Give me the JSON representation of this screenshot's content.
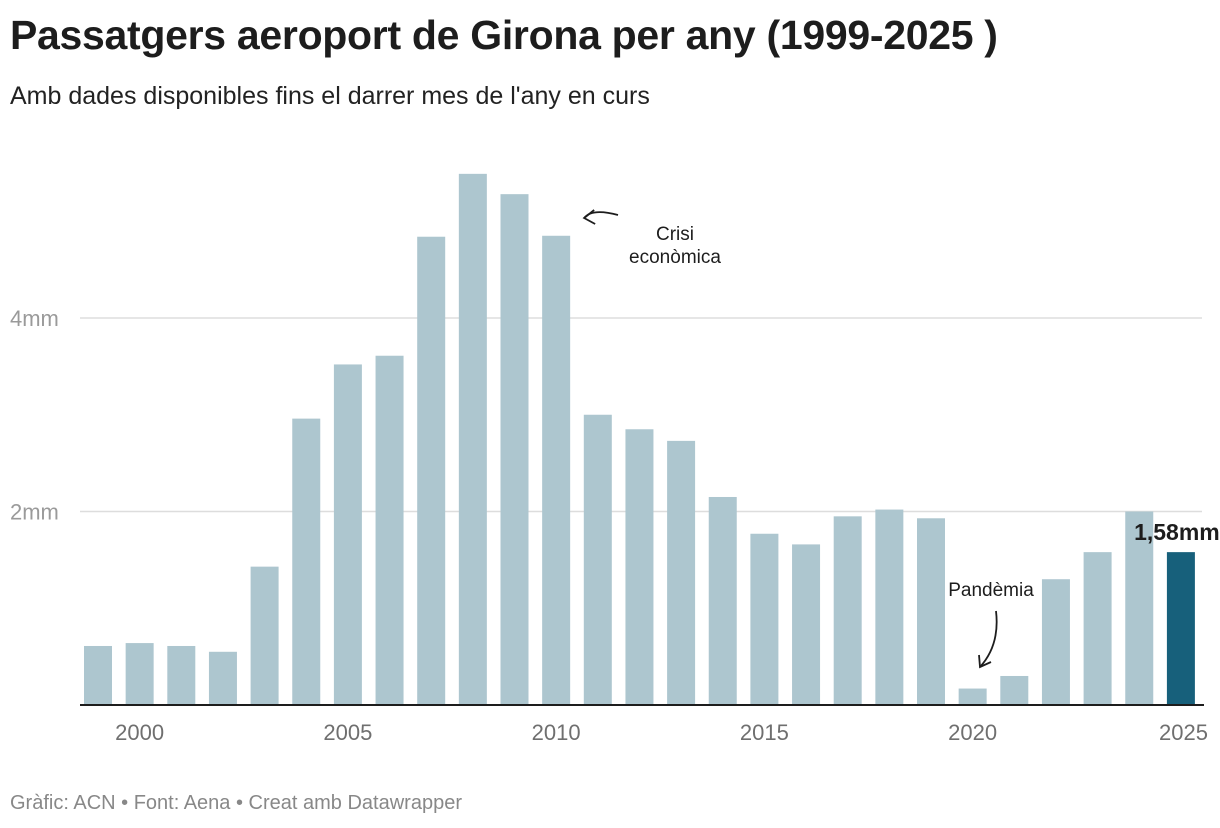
{
  "header": {
    "title": "Passatgers aeroport de Girona per any (1999-2025 )",
    "subtitle": "Amb dades disponibles fins el darrer mes de l'any en curs"
  },
  "footer": {
    "credit": "Gràfic: ACN • Font: Aena • Creat amb Datawrapper"
  },
  "colors": {
    "bar": "#adc6cf",
    "highlight": "#17607b",
    "grid": "#dddddd",
    "axis": "#1d1d1d",
    "tick_text": "#9a9a9a"
  },
  "chart_data": {
    "type": "bar",
    "title": "Passatgers aeroport de Girona per any (1999-2025 )",
    "subtitle": "Amb dades disponibles fins el darrer mes de l'any en curs",
    "xlabel": "",
    "ylabel": "",
    "categories": [
      1999,
      2000,
      2001,
      2002,
      2003,
      2004,
      2005,
      2006,
      2007,
      2008,
      2009,
      2010,
      2011,
      2012,
      2013,
      2014,
      2015,
      2016,
      2017,
      2018,
      2019,
      2020,
      2021,
      2022,
      2023,
      2024,
      2025
    ],
    "values": [
      0.61,
      0.64,
      0.61,
      0.55,
      1.43,
      2.96,
      3.52,
      3.61,
      4.84,
      5.49,
      5.28,
      4.85,
      3.0,
      2.85,
      2.73,
      2.15,
      1.77,
      1.66,
      1.95,
      2.02,
      1.93,
      0.17,
      0.3,
      1.3,
      1.58,
      2.0,
      1.58
    ],
    "highlight_index": 26,
    "highlight_label": "1,58mm",
    "ylim": [
      0,
      5.6
    ],
    "yticks": [
      {
        "value": 2,
        "label": "2mm"
      },
      {
        "value": 4,
        "label": "4mm"
      }
    ],
    "xticks": [
      {
        "value": 2000,
        "label": "2000"
      },
      {
        "value": 2005,
        "label": "2005"
      },
      {
        "value": 2010,
        "label": "2010"
      },
      {
        "value": 2015,
        "label": "2015"
      },
      {
        "value": 2020,
        "label": "2020"
      },
      {
        "value": 2025,
        "label": "2025"
      }
    ],
    "grid": true,
    "annotations": [
      {
        "lines": [
          "Crisi",
          "econòmica"
        ],
        "x": 2010,
        "value": 4.85
      },
      {
        "lines": [
          "Pandèmia"
        ],
        "x": 2020,
        "value": 0.17
      }
    ]
  }
}
